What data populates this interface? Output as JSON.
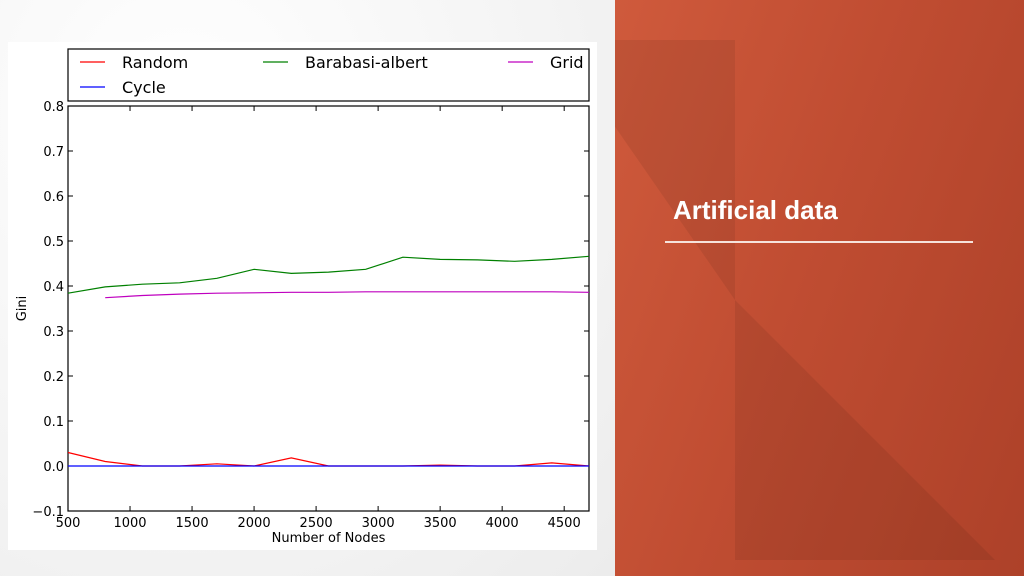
{
  "slide": {
    "title": "Artificial data",
    "accent_color": "#c4502f"
  },
  "chart_data": {
    "type": "line",
    "title": "",
    "xlabel": "Number of Nodes",
    "ylabel": "Gini",
    "xlim": [
      500,
      4700
    ],
    "ylim": [
      -0.1,
      0.8
    ],
    "xticks": [
      500,
      1000,
      1500,
      2000,
      2500,
      3000,
      3500,
      4000,
      4500
    ],
    "yticks": [
      -0.1,
      0.0,
      0.1,
      0.2,
      0.3,
      0.4,
      0.5,
      0.6,
      0.7,
      0.8
    ],
    "xtick_labels": [
      "500",
      "1000",
      "1500",
      "2000",
      "2500",
      "3000",
      "3500",
      "4000",
      "4500"
    ],
    "ytick_labels": [
      "−0.1",
      "0.0",
      "0.1",
      "0.2",
      "0.3",
      "0.4",
      "0.5",
      "0.6",
      "0.7",
      "0.8"
    ],
    "grid": false,
    "legend_position": "top",
    "series": [
      {
        "name": "Random",
        "color": "#ff0000",
        "x": [
          500,
          800,
          1100,
          1400,
          1700,
          2000,
          2300,
          2600,
          2900,
          3200,
          3500,
          3800,
          4100,
          4400,
          4700
        ],
        "y": [
          0.03,
          0.01,
          0.0,
          0.0,
          0.005,
          0.0,
          0.018,
          0.0,
          0.0,
          0.0,
          0.002,
          0.0,
          0.0,
          0.007,
          0.0
        ]
      },
      {
        "name": "Barabasi-albert",
        "color": "#008000",
        "x": [
          500,
          800,
          1100,
          1400,
          1700,
          2000,
          2300,
          2600,
          2900,
          3200,
          3500,
          3800,
          4100,
          4400,
          4700
        ],
        "y": [
          0.384,
          0.398,
          0.404,
          0.407,
          0.417,
          0.437,
          0.428,
          0.431,
          0.437,
          0.464,
          0.459,
          0.458,
          0.455,
          0.459,
          0.466
        ]
      },
      {
        "name": "Grid",
        "color": "#bf00bf",
        "x": [
          800,
          1100,
          1400,
          1700,
          2000,
          2300,
          2600,
          2900,
          3200,
          3500,
          3800,
          4100,
          4400,
          4700
        ],
        "y": [
          0.374,
          0.379,
          0.382,
          0.384,
          0.385,
          0.386,
          0.386,
          0.387,
          0.387,
          0.387,
          0.387,
          0.387,
          0.387,
          0.386
        ]
      },
      {
        "name": "Cycle",
        "color": "#0000ff",
        "x": [
          500,
          4700
        ],
        "y": [
          0.0,
          0.0
        ]
      }
    ]
  }
}
